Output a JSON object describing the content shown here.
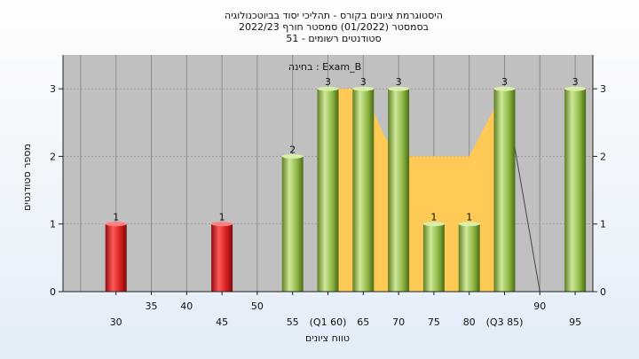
{
  "chart_data": {
    "type": "bar",
    "title": [
      "היסטוגרמת ציונים בקורס - תהליכי יסוד בביוטכנולוגיה",
      "בסמסטר  (01/2022)  סמסטר חורף 2022/23",
      "51 - סטודנטים רשומים"
    ],
    "annotation": "בחינה : Exam_B",
    "xlabel": "טווח ציונים",
    "ylabel": "מספר סטודנטים",
    "ylim": [
      0,
      3.5
    ],
    "yticks": [
      0,
      1,
      2,
      3
    ],
    "xticks_lower": [
      "30",
      "45",
      "55",
      "(Q1 60)",
      "65",
      "70",
      "75",
      "80",
      "(Q3 85)",
      "95"
    ],
    "xticks_upper": [
      "35",
      "40",
      "50",
      "90"
    ],
    "bars": [
      {
        "x": 30,
        "value": 1,
        "color": "red"
      },
      {
        "x": 45,
        "value": 1,
        "color": "red"
      },
      {
        "x": 55,
        "value": 2,
        "color": "green"
      },
      {
        "x": 60,
        "value": 3,
        "color": "green"
      },
      {
        "x": 65,
        "value": 3,
        "color": "green"
      },
      {
        "x": 70,
        "value": 3,
        "color": "green"
      },
      {
        "x": 75,
        "value": 1,
        "color": "green"
      },
      {
        "x": 80,
        "value": 1,
        "color": "green"
      },
      {
        "x": 85,
        "value": 3,
        "color": "green"
      },
      {
        "x": 95,
        "value": 3,
        "color": "green"
      }
    ],
    "area": [
      {
        "x": 60,
        "y": 3
      },
      {
        "x": 65,
        "y": 3
      },
      {
        "x": 68,
        "y": 2.3
      },
      {
        "x": 70,
        "y": 2
      },
      {
        "x": 80,
        "y": 2
      },
      {
        "x": 85,
        "y": 3
      }
    ],
    "line": [
      {
        "x": 85,
        "y": 3
      },
      {
        "x": 90,
        "y": 0
      }
    ],
    "colors": {
      "plot_bg": "#c0c0c0",
      "area": "#ffc955",
      "red": "#d81e1e",
      "green": "#8fb845"
    }
  }
}
